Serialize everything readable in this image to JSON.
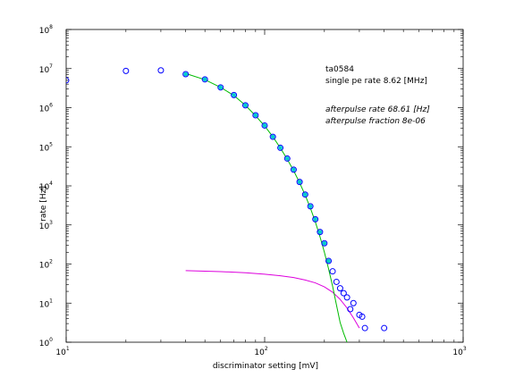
{
  "chart_data": {
    "type": "scatter",
    "xscale": "log",
    "yscale": "log",
    "xlim": [
      10,
      1000
    ],
    "ylim": [
      1,
      100000000
    ],
    "xlabel": "discriminator setting [mV]",
    "ylabel": "rate [Hz]",
    "x_ticks": [
      {
        "base": "10",
        "exp": "1",
        "value": 10
      },
      {
        "base": "10",
        "exp": "2",
        "value": 100
      },
      {
        "base": "10",
        "exp": "3",
        "value": 1000
      }
    ],
    "y_ticks": [
      {
        "base": "10",
        "exp": "0",
        "value": 1
      },
      {
        "base": "10",
        "exp": "1",
        "value": 10
      },
      {
        "base": "10",
        "exp": "2",
        "value": 100
      },
      {
        "base": "10",
        "exp": "3",
        "value": 1000
      },
      {
        "base": "10",
        "exp": "4",
        "value": 10000
      },
      {
        "base": "10",
        "exp": "5",
        "value": 100000
      },
      {
        "base": "10",
        "exp": "6",
        "value": 1000000
      },
      {
        "base": "10",
        "exp": "7",
        "value": 10000000
      },
      {
        "base": "10",
        "exp": "8",
        "value": 100000000
      }
    ],
    "annotations": {
      "line1": "ta0584",
      "line2": "single pe rate 8.62 [MHz]",
      "line3": "afterpulse rate 68.61 [Hz]",
      "line4": "afterpulse fraction 8e-06"
    },
    "measured": {
      "color": "#0000ff",
      "x": [
        10,
        20,
        30,
        40,
        50,
        60,
        70,
        80,
        90,
        100,
        110,
        120,
        130,
        140,
        150,
        160,
        170,
        180,
        190,
        200,
        210,
        220,
        230,
        240,
        250,
        260,
        270,
        280,
        300,
        310,
        320,
        400
      ],
      "y": [
        5000000,
        8700000,
        9000000,
        7200000,
        5300000,
        3300000,
        2100000,
        1150000,
        640000,
        350000,
        180000,
        94000,
        50000,
        26000,
        12600,
        6000,
        3000,
        1400,
        660,
        340,
        120,
        65,
        35,
        24,
        18,
        14,
        7,
        10,
        5,
        4.5,
        2.3,
        2.3
      ]
    },
    "fit_points": {
      "color": "#00cccc",
      "x": [
        40,
        50,
        60,
        70,
        80,
        90,
        100,
        110,
        120,
        130,
        140,
        150,
        160,
        170,
        180,
        190,
        200,
        210
      ],
      "y": [
        7200000,
        5300000,
        3300000,
        2100000,
        1150000,
        640000,
        350000,
        180000,
        94000,
        50000,
        26000,
        12600,
        6000,
        3000,
        1400,
        660,
        340,
        120
      ]
    },
    "single_pe_fit": {
      "color": "#00bb00",
      "x": [
        40,
        50,
        60,
        70,
        80,
        90,
        100,
        110,
        120,
        130,
        140,
        150,
        160,
        170,
        180,
        190,
        200,
        210,
        220,
        230,
        240,
        250,
        260
      ],
      "y": [
        7500000,
        5200000,
        3300000,
        2050000,
        1150000,
        620000,
        340000,
        180000,
        93000,
        48000,
        24500,
        12000,
        5800,
        2700,
        1200,
        500,
        200,
        75,
        27,
        9,
        3.2,
        1.7,
        1
      ]
    },
    "afterpulse_fit": {
      "color": "#dd00dd",
      "x": [
        40,
        60,
        80,
        100,
        120,
        140,
        160,
        180,
        200,
        220,
        240,
        260,
        280,
        300
      ],
      "y": [
        68,
        64,
        60,
        55,
        50,
        45,
        39,
        33,
        26,
        19,
        12.5,
        7.5,
        4.2,
        2.3
      ]
    }
  }
}
